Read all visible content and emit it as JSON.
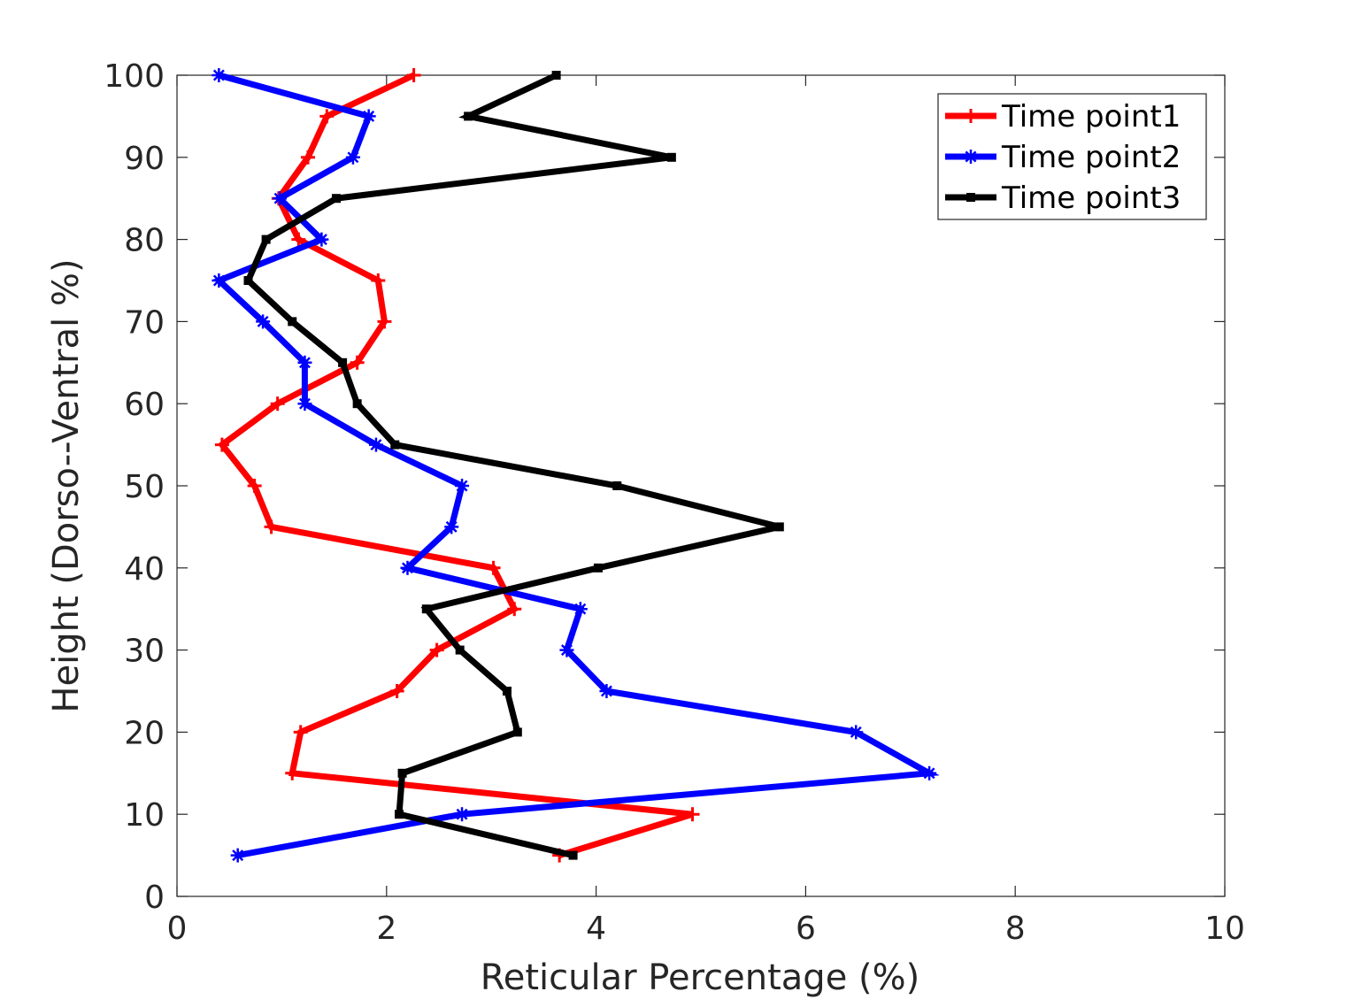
{
  "chart_data": {
    "type": "line",
    "title": "",
    "xlabel": "Reticular Percentage (%)",
    "ylabel": "Height (Dorso--Ventral %)",
    "xlim": [
      0,
      10
    ],
    "ylim": [
      0,
      100
    ],
    "xticks": [
      0,
      2,
      4,
      6,
      8,
      10
    ],
    "yticks": [
      0,
      10,
      20,
      30,
      40,
      50,
      60,
      70,
      80,
      90,
      100
    ],
    "xtick_labels": [
      "0",
      "2",
      "4",
      "6",
      "8",
      "10"
    ],
    "ytick_labels": [
      "0",
      "10",
      "20",
      "30",
      "40",
      "50",
      "60",
      "70",
      "80",
      "90",
      "100"
    ],
    "grid": false,
    "legend_position": "top-right",
    "y": [
      5,
      10,
      15,
      20,
      25,
      30,
      35,
      40,
      45,
      50,
      55,
      60,
      65,
      70,
      75,
      80,
      85,
      90,
      95,
      100
    ],
    "series": [
      {
        "name": "Time point1",
        "color": "#ff0000",
        "marker": "plus",
        "x": [
          3.65,
          4.92,
          1.1,
          1.18,
          2.1,
          2.48,
          3.22,
          3.02,
          0.9,
          0.74,
          0.43,
          0.96,
          1.72,
          1.98,
          1.92,
          1.16,
          0.97,
          1.25,
          1.43,
          2.26
        ]
      },
      {
        "name": "Time point2",
        "color": "#0000ff",
        "marker": "asterisk",
        "x": [
          0.58,
          2.72,
          7.18,
          6.48,
          4.1,
          3.72,
          3.85,
          2.2,
          2.62,
          2.72,
          1.9,
          1.22,
          1.22,
          0.82,
          0.4,
          1.38,
          0.98,
          1.68,
          1.83,
          0.4
        ]
      },
      {
        "name": "Time point3",
        "color": "#000000",
        "marker": "square",
        "x": [
          3.78,
          2.12,
          2.15,
          3.25,
          3.15,
          2.7,
          2.38,
          4.02,
          5.75,
          4.2,
          2.08,
          1.72,
          1.58,
          1.1,
          0.68,
          0.85,
          1.52,
          4.72,
          2.78,
          3.62
        ]
      }
    ]
  }
}
